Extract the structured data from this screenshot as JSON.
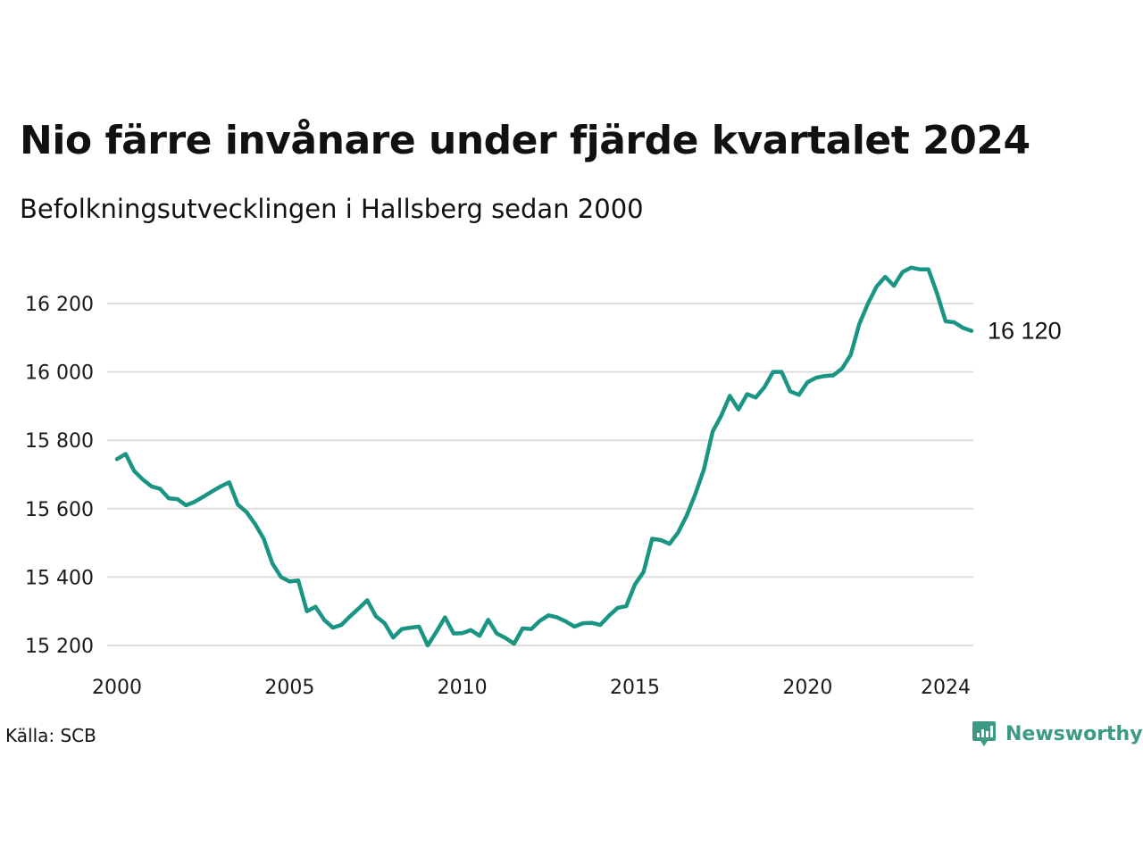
{
  "header": {
    "title": "Nio färre invånare under fjärde kvartalet 2024",
    "subtitle": "Befolkningsutvecklingen i Hallsberg sedan 2000"
  },
  "footer": {
    "source": "Källa: SCB",
    "brand": "Newsworthy",
    "brand_icon": "newsworthy-logo-icon",
    "brand_color": "#3d9a84"
  },
  "colors": {
    "line": "#1a9583",
    "grid": "#dddddd"
  },
  "chart_data": {
    "type": "line",
    "title": "Nio färre invånare under fjärde kvartalet 2024",
    "subtitle": "Befolkningsutvecklingen i Hallsberg sedan 2000",
    "xlabel": "",
    "ylabel": "",
    "x_ticks": [
      2000,
      2005,
      2010,
      2015,
      2020,
      2024
    ],
    "x_tick_labels": [
      "2000",
      "2005",
      "2010",
      "2015",
      "2020",
      "2024"
    ],
    "y_ticks": [
      15200,
      15400,
      15600,
      15800,
      16000,
      16200
    ],
    "y_tick_labels": [
      "15 200",
      "15 400",
      "15 600",
      "15 800",
      "16 000",
      "16 200"
    ],
    "xlim": [
      2000,
      2024.75
    ],
    "ylim": [
      15180,
      16320
    ],
    "grid": "horizontal",
    "end_label": "16 120",
    "series": [
      {
        "name": "",
        "x": [
          2000,
          2000.25,
          2000.5,
          2000.75,
          2001,
          2001.25,
          2001.5,
          2001.75,
          2002,
          2002.25,
          2002.5,
          2002.75,
          2003,
          2003.25,
          2003.5,
          2003.75,
          2004,
          2004.25,
          2004.5,
          2004.75,
          2005,
          2005.25,
          2005.5,
          2005.75,
          2006,
          2006.25,
          2006.5,
          2006.75,
          2007,
          2007.25,
          2007.5,
          2007.75,
          2008,
          2008.25,
          2008.5,
          2008.75,
          2009,
          2009.25,
          2009.5,
          2009.75,
          2010,
          2010.25,
          2010.5,
          2010.75,
          2011,
          2011.25,
          2011.5,
          2011.75,
          2012,
          2012.25,
          2012.5,
          2012.75,
          2013,
          2013.25,
          2013.5,
          2013.75,
          2014,
          2014.25,
          2014.5,
          2014.75,
          2015,
          2015.25,
          2015.5,
          2015.75,
          2016,
          2016.25,
          2016.5,
          2016.75,
          2017,
          2017.25,
          2017.5,
          2017.75,
          2018,
          2018.25,
          2018.5,
          2018.75,
          2019,
          2019.25,
          2019.5,
          2019.75,
          2020,
          2020.25,
          2020.5,
          2020.75,
          2021,
          2021.25,
          2021.5,
          2021.75,
          2022,
          2022.25,
          2022.5,
          2022.75,
          2023,
          2023.25,
          2023.5,
          2023.75,
          2024,
          2024.25,
          2024.5,
          2024.75
        ],
        "values": [
          15745,
          15760,
          15710,
          15685,
          15665,
          15658,
          15630,
          15628,
          15610,
          15620,
          15635,
          15650,
          15665,
          15677,
          15612,
          15590,
          15555,
          15512,
          15440,
          15400,
          15387,
          15390,
          15300,
          15313,
          15275,
          15252,
          15260,
          15285,
          15308,
          15332,
          15285,
          15265,
          15223,
          15248,
          15252,
          15255,
          15200,
          15240,
          15282,
          15235,
          15236,
          15245,
          15228,
          15275,
          15235,
          15222,
          15205,
          15250,
          15248,
          15272,
          15288,
          15282,
          15270,
          15255,
          15265,
          15266,
          15260,
          15287,
          15310,
          15315,
          15378,
          15415,
          15512,
          15508,
          15497,
          15530,
          15580,
          15643,
          15715,
          15825,
          15872,
          15930,
          15890,
          15935,
          15925,
          15955,
          16000,
          16000,
          15943,
          15933,
          15970,
          15983,
          15988,
          15990,
          16010,
          16050,
          16140,
          16200,
          16250,
          16278,
          16252,
          16292,
          16305,
          16300,
          16300,
          16230,
          16148,
          16145,
          16129,
          16120
        ]
      }
    ]
  }
}
